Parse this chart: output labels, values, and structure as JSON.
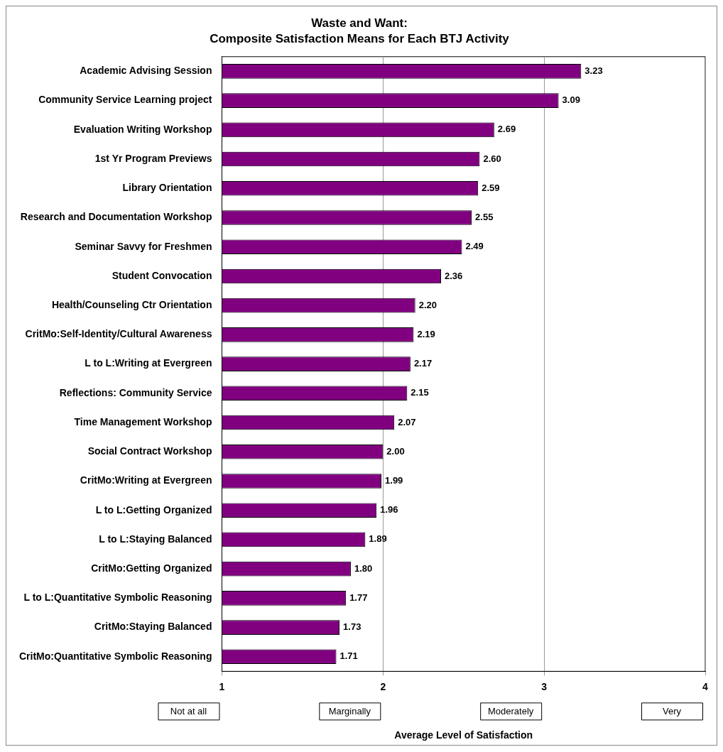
{
  "chart_data": {
    "type": "bar",
    "orientation": "horizontal",
    "title": "Waste and Want:",
    "subtitle": "Composite Satisfaction Means for Each BTJ Activity",
    "xlabel": "Average Level of Satisfaction",
    "categories": [
      "Academic Advising Session",
      "Community Service Learning project",
      "Evaluation Writing Workshop",
      "1st Yr Program Previews",
      "Library Orientation",
      "Research and Documentation Workshop",
      "Seminar Savvy for Freshmen",
      "Student Convocation",
      "Health/Counseling Ctr Orientation",
      "CritMo:Self-Identity/Cultural Awareness",
      "L to L:Writing at Evergreen",
      "Reflections: Community Service",
      "Time Management Workshop",
      "Social Contract Workshop",
      "CritMo:Writing at Evergreen",
      "L to L:Getting Organized",
      "L to L:Staying Balanced",
      "CritMo:Getting Organized",
      "L to L:Quantitative Symbolic Reasoning",
      "CritMo:Staying Balanced",
      "CritMo:Quantitative Symbolic Reasoning"
    ],
    "values": [
      3.23,
      3.09,
      2.69,
      2.6,
      2.59,
      2.55,
      2.49,
      2.36,
      2.2,
      2.19,
      2.17,
      2.15,
      2.07,
      2.0,
      1.99,
      1.96,
      1.89,
      1.8,
      1.77,
      1.73,
      1.71
    ],
    "value_labels": [
      "3.23",
      "3.09",
      "2.69",
      "2.60",
      "2.59",
      "2.55",
      "2.49",
      "2.36",
      "2.20",
      "2.19",
      "2.17",
      "2.15",
      "2.07",
      "2.00",
      "1.99",
      "1.96",
      "1.89",
      "1.80",
      "1.77",
      "1.73",
      "1.71"
    ],
    "color": "#800080",
    "xlim": [
      1,
      4
    ],
    "xticks": [
      1,
      2,
      3,
      4
    ],
    "grid": "x",
    "legend": false,
    "annotations": [
      "Not at all",
      "Marginally",
      "Moderately",
      "Very"
    ]
  }
}
